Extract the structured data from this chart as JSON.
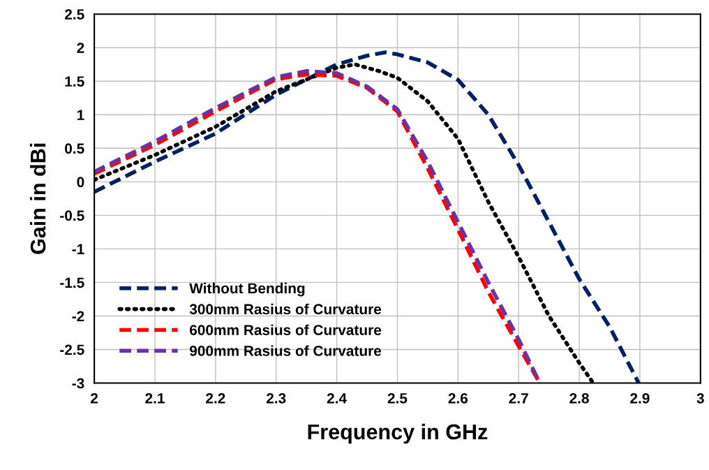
{
  "chart_data": {
    "type": "line",
    "xlabel": "Frequency in GHz",
    "ylabel": "Gain in dBi",
    "xlim": [
      2,
      3
    ],
    "xticks": [
      2,
      2.1,
      2.2,
      2.3,
      2.4,
      2.5,
      2.6,
      2.7,
      2.8,
      2.9,
      3
    ],
    "ylim": [
      -3,
      2.5
    ],
    "yticks": [
      -3,
      -2.5,
      -2,
      -1.5,
      -1,
      -0.5,
      0,
      0.5,
      1,
      1.5,
      2,
      2.5
    ],
    "grid": true,
    "legend": "bottom left",
    "marker": "none",
    "series": [
      {
        "name": "Without Bending",
        "color": "#002060",
        "line_style": "dashed",
        "x": [
          2,
          2.1,
          2.2,
          2.3,
          2.4,
          2.45,
          2.48,
          2.5,
          2.55,
          2.6,
          2.65,
          2.7,
          2.75,
          2.8,
          2.85,
          2.898
        ],
        "values": [
          -0.15,
          0.3,
          0.72,
          1.3,
          1.75,
          1.88,
          1.93,
          1.9,
          1.78,
          1.52,
          1.0,
          0.25,
          -0.6,
          -1.45,
          -2.16,
          -3.0
        ]
      },
      {
        "name": "300mm Rasius of Curvature",
        "color": "#000000",
        "line_style": "dotted",
        "x": [
          2,
          2.1,
          2.2,
          2.3,
          2.4,
          2.43,
          2.47,
          2.5,
          2.55,
          2.6,
          2.65,
          2.7,
          2.75,
          2.8,
          2.823
        ],
        "values": [
          0.03,
          0.4,
          0.82,
          1.35,
          1.7,
          1.75,
          1.65,
          1.55,
          1.2,
          0.64,
          -0.3,
          -1.12,
          -2.0,
          -2.7,
          -3.0
        ]
      },
      {
        "name": "600mm Rasius of Curvature",
        "color": "#ff0000",
        "line_style": "dashed",
        "x": [
          2,
          2.1,
          2.2,
          2.3,
          2.35,
          2.4,
          2.45,
          2.5,
          2.55,
          2.6,
          2.65,
          2.7,
          2.735
        ],
        "values": [
          0.12,
          0.55,
          1.05,
          1.53,
          1.6,
          1.58,
          1.4,
          1.05,
          0.2,
          -0.71,
          -1.64,
          -2.45,
          -3.0
        ]
      },
      {
        "name": "900mm Rasius of Curvature",
        "color": "#7030a0",
        "line_style": "dashed",
        "x": [
          2,
          2.1,
          2.2,
          2.3,
          2.35,
          2.4,
          2.45,
          2.5,
          2.55,
          2.6,
          2.65,
          2.7,
          2.735
        ],
        "values": [
          0.15,
          0.6,
          1.1,
          1.56,
          1.65,
          1.62,
          1.42,
          1.08,
          0.3,
          -0.6,
          -1.5,
          -2.35,
          -3.0
        ]
      }
    ]
  }
}
